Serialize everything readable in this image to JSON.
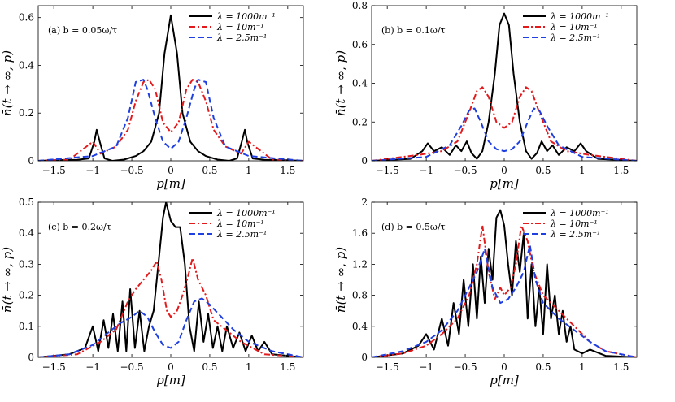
{
  "chart_data": [
    {
      "type": "line",
      "annotation": "(a) b = 0.05ω/τ",
      "xlabel": "p[m]",
      "ylabel": "n̄(t → ∞, p)",
      "xlim": [
        -1.7,
        1.7
      ],
      "ylim": [
        0,
        0.65
      ],
      "xticks": [
        -1.5,
        -1,
        -0.5,
        0,
        0.5,
        1,
        1.5
      ],
      "xtick_labels": [
        "−1.5",
        "−1",
        "−0.5",
        "0",
        "0.5",
        "1",
        "1.5"
      ],
      "yticks": [
        0,
        0.2,
        0.4,
        0.6
      ],
      "ytick_labels": [
        "0",
        "0.2",
        "0.4",
        "0.6"
      ],
      "legend_position": "top-right",
      "series": [
        {
          "name": "λ = 1000m⁻¹",
          "color": "#000000",
          "dash": "solid",
          "x": [
            -1.7,
            -1.45,
            -1.2,
            -1.05,
            -0.98,
            -0.95,
            -0.91,
            -0.85,
            -0.75,
            -0.6,
            -0.45,
            -0.35,
            -0.25,
            -0.15,
            -0.08,
            0,
            0.08,
            0.15,
            0.25,
            0.35,
            0.45,
            0.6,
            0.75,
            0.85,
            0.91,
            0.95,
            0.98,
            1.05,
            1.2,
            1.45,
            1.7
          ],
          "y": [
            0,
            0.003,
            0.004,
            0.01,
            0.08,
            0.13,
            0.08,
            0.01,
            0,
            0.005,
            0.02,
            0.04,
            0.08,
            0.2,
            0.45,
            0.61,
            0.45,
            0.2,
            0.08,
            0.04,
            0.02,
            0.005,
            0,
            0.01,
            0.08,
            0.13,
            0.08,
            0.01,
            0.004,
            0.003,
            0
          ]
        },
        {
          "name": "λ = 10m⁻¹",
          "color": "#e31a1c",
          "dash": "dashdot",
          "x": [
            -1.7,
            -1.3,
            -1.0,
            -0.9,
            -0.7,
            -0.55,
            -0.45,
            -0.35,
            -0.28,
            -0.2,
            -0.1,
            0,
            0.1,
            0.2,
            0.28,
            0.35,
            0.45,
            0.55,
            0.7,
            0.9,
            1.0,
            1.3,
            1.7
          ],
          "y": [
            0,
            0.005,
            0.08,
            0.03,
            0.06,
            0.13,
            0.25,
            0.33,
            0.34,
            0.3,
            0.16,
            0.12,
            0.16,
            0.3,
            0.34,
            0.33,
            0.25,
            0.13,
            0.06,
            0.03,
            0.08,
            0.005,
            0
          ]
        },
        {
          "name": "λ = 2.5m⁻¹",
          "color": "#1f3fe0",
          "dash": "dashed",
          "x": [
            -1.7,
            -1.0,
            -0.7,
            -0.55,
            -0.45,
            -0.35,
            -0.3,
            -0.2,
            -0.1,
            0,
            0.1,
            0.2,
            0.3,
            0.35,
            0.45,
            0.55,
            0.7,
            1.0,
            1.7
          ],
          "y": [
            0,
            0.02,
            0.06,
            0.18,
            0.33,
            0.34,
            0.3,
            0.18,
            0.08,
            0.05,
            0.08,
            0.18,
            0.3,
            0.34,
            0.33,
            0.18,
            0.06,
            0.02,
            0
          ]
        }
      ]
    },
    {
      "type": "line",
      "annotation": "(b) b = 0.1ω/τ",
      "xlabel": "p[m]",
      "ylabel": "n̄(t → ∞, p)",
      "xlim": [
        -1.7,
        1.7
      ],
      "ylim": [
        0,
        0.8
      ],
      "xticks": [
        -1.5,
        -1,
        -0.5,
        0,
        0.5,
        1,
        1.5
      ],
      "xtick_labels": [
        "−1.5",
        "−1",
        "−0.5",
        "0",
        "0.5",
        "1",
        "1.5"
      ],
      "yticks": [
        0,
        0.2,
        0.4,
        0.6,
        0.8
      ],
      "ytick_labels": [
        "0",
        "0.2",
        "0.4",
        "0.6",
        "0.8"
      ],
      "legend_position": "top-right",
      "series": [
        {
          "name": "λ = 1000m⁻¹",
          "color": "#000000",
          "dash": "solid",
          "x": [
            -1.7,
            -1.2,
            -1.05,
            -0.98,
            -0.9,
            -0.8,
            -0.7,
            -0.62,
            -0.55,
            -0.48,
            -0.42,
            -0.35,
            -0.28,
            -0.2,
            -0.12,
            -0.06,
            0,
            0.06,
            0.12,
            0.2,
            0.28,
            0.35,
            0.42,
            0.48,
            0.55,
            0.62,
            0.7,
            0.8,
            0.9,
            0.98,
            1.05,
            1.2,
            1.7
          ],
          "y": [
            0,
            0.01,
            0.05,
            0.09,
            0.05,
            0.07,
            0.03,
            0.08,
            0.05,
            0.1,
            0.04,
            0.01,
            0.05,
            0.2,
            0.45,
            0.7,
            0.76,
            0.7,
            0.45,
            0.2,
            0.05,
            0.01,
            0.04,
            0.1,
            0.05,
            0.08,
            0.03,
            0.07,
            0.05,
            0.09,
            0.05,
            0.01,
            0
          ]
        },
        {
          "name": "λ = 10m⁻¹",
          "color": "#e31a1c",
          "dash": "dashdot",
          "x": [
            -1.7,
            -1.1,
            -0.8,
            -0.6,
            -0.45,
            -0.35,
            -0.28,
            -0.2,
            -0.1,
            0,
            0.1,
            0.2,
            0.28,
            0.35,
            0.45,
            0.6,
            0.8,
            1.1,
            1.7
          ],
          "y": [
            0,
            0.03,
            0.05,
            0.1,
            0.25,
            0.36,
            0.38,
            0.33,
            0.2,
            0.17,
            0.2,
            0.33,
            0.38,
            0.36,
            0.25,
            0.1,
            0.05,
            0.03,
            0
          ]
        },
        {
          "name": "λ = 2.5m⁻¹",
          "color": "#1f3fe0",
          "dash": "dashed",
          "x": [
            -1.7,
            -1.0,
            -0.7,
            -0.55,
            -0.45,
            -0.38,
            -0.3,
            -0.2,
            -0.1,
            0,
            0.1,
            0.2,
            0.3,
            0.38,
            0.45,
            0.55,
            0.7,
            1.0,
            1.7
          ],
          "y": [
            0,
            0.02,
            0.08,
            0.18,
            0.26,
            0.27,
            0.2,
            0.1,
            0.06,
            0.05,
            0.06,
            0.1,
            0.2,
            0.27,
            0.26,
            0.18,
            0.08,
            0.02,
            0
          ]
        }
      ]
    },
    {
      "type": "line",
      "annotation": "(c) b = 0.2ω/τ",
      "xlabel": "p[m]",
      "ylabel": "n̄(t → ∞, p)",
      "xlim": [
        -1.7,
        1.7
      ],
      "ylim": [
        0,
        0.5
      ],
      "xticks": [
        -1.5,
        -1,
        -0.5,
        0,
        0.5,
        1,
        1.5
      ],
      "xtick_labels": [
        "−1.5",
        "−1",
        "−0.5",
        "0",
        "0.5",
        "1",
        "1.5"
      ],
      "yticks": [
        0,
        0.1,
        0.2,
        0.3,
        0.4,
        0.5
      ],
      "ytick_labels": [
        "0",
        "0.1",
        "0.2",
        "0.3",
        "0.4",
        "0.5"
      ],
      "legend_position": "top-right",
      "series": [
        {
          "name": "λ = 1000m⁻¹",
          "color": "#000000",
          "dash": "solid",
          "x": [
            -1.7,
            -1.3,
            -1.1,
            -1.0,
            -0.93,
            -0.86,
            -0.8,
            -0.74,
            -0.68,
            -0.62,
            -0.57,
            -0.52,
            -0.46,
            -0.4,
            -0.34,
            -0.28,
            -0.22,
            -0.16,
            -0.1,
            -0.06,
            0,
            0.06,
            0.12,
            0.18,
            0.24,
            0.3,
            0.36,
            0.42,
            0.48,
            0.54,
            0.6,
            0.66,
            0.72,
            0.8,
            0.88,
            0.96,
            1.04,
            1.12,
            1.2,
            1.3,
            1.7
          ],
          "y": [
            0,
            0.01,
            0.03,
            0.1,
            0.02,
            0.12,
            0.03,
            0.14,
            0.02,
            0.18,
            0.02,
            0.22,
            0.03,
            0.15,
            0.02,
            0.1,
            0.15,
            0.3,
            0.45,
            0.5,
            0.44,
            0.42,
            0.42,
            0.3,
            0.1,
            0.02,
            0.18,
            0.05,
            0.14,
            0.03,
            0.1,
            0.02,
            0.1,
            0.03,
            0.08,
            0.02,
            0.07,
            0.02,
            0.05,
            0.01,
            0
          ]
        },
        {
          "name": "λ = 10m⁻¹",
          "color": "#e31a1c",
          "dash": "dashdot",
          "x": [
            -1.7,
            -1.2,
            -0.9,
            -0.7,
            -0.55,
            -0.45,
            -0.35,
            -0.25,
            -0.18,
            -0.12,
            -0.05,
            0,
            0.08,
            0.15,
            0.22,
            0.28,
            0.35,
            0.45,
            0.55,
            0.7,
            0.9,
            1.2,
            1.7
          ],
          "y": [
            0,
            0.01,
            0.05,
            0.09,
            0.18,
            0.22,
            0.25,
            0.28,
            0.31,
            0.25,
            0.15,
            0.13,
            0.15,
            0.2,
            0.26,
            0.32,
            0.25,
            0.2,
            0.12,
            0.09,
            0.05,
            0.01,
            0
          ]
        },
        {
          "name": "λ = 2.5m⁻¹",
          "color": "#1f3fe0",
          "dash": "dashed",
          "x": [
            -1.7,
            -1.3,
            -1.0,
            -0.8,
            -0.65,
            -0.5,
            -0.4,
            -0.3,
            -0.2,
            -0.1,
            0,
            0.1,
            0.2,
            0.3,
            0.4,
            0.5,
            0.65,
            0.8,
            1.0,
            1.3,
            1.7
          ],
          "y": [
            0,
            0.01,
            0.04,
            0.08,
            0.11,
            0.13,
            0.15,
            0.13,
            0.08,
            0.04,
            0.03,
            0.05,
            0.12,
            0.18,
            0.19,
            0.17,
            0.13,
            0.09,
            0.05,
            0.02,
            0
          ]
        }
      ]
    },
    {
      "type": "line",
      "annotation": "(d) b = 0.5ω/τ",
      "xlabel": "p[m]",
      "ylabel": "n̄(t → ∞, p)",
      "xlim": [
        -1.7,
        1.7
      ],
      "ylim": [
        0,
        2
      ],
      "xticks": [
        -1.5,
        -1,
        -0.5,
        0,
        0.5,
        1,
        1.5
      ],
      "xtick_labels": [
        "−1.5",
        "−1",
        "−0.5",
        "0",
        "0.5",
        "1",
        "1.5"
      ],
      "yticks": [
        0,
        0.4,
        0.8,
        1.2,
        1.6,
        2
      ],
      "ytick_labels": [
        "0",
        "0.4",
        "0.8",
        "1.2",
        "1.6",
        "2"
      ],
      "legend_position": "top-right",
      "series": [
        {
          "name": "λ = 1000m⁻¹",
          "color": "#000000",
          "dash": "solid",
          "x": [
            -1.7,
            -1.3,
            -1.1,
            -1.0,
            -0.9,
            -0.8,
            -0.72,
            -0.65,
            -0.58,
            -0.52,
            -0.46,
            -0.4,
            -0.35,
            -0.3,
            -0.25,
            -0.2,
            -0.15,
            -0.1,
            -0.05,
            0,
            0.05,
            0.1,
            0.15,
            0.2,
            0.25,
            0.3,
            0.35,
            0.4,
            0.45,
            0.5,
            0.55,
            0.6,
            0.65,
            0.7,
            0.75,
            0.8,
            0.85,
            0.9,
            1.0,
            1.1,
            1.3,
            1.7
          ],
          "y": [
            0,
            0.05,
            0.15,
            0.3,
            0.1,
            0.5,
            0.15,
            0.7,
            0.3,
            1.0,
            0.4,
            1.2,
            0.5,
            1.3,
            0.7,
            1.4,
            1.0,
            1.8,
            1.9,
            1.7,
            1.2,
            0.8,
            1.5,
            1.1,
            1.6,
            0.5,
            1.2,
            0.4,
            0.9,
            0.3,
            1.2,
            0.5,
            0.8,
            0.3,
            0.6,
            0.2,
            0.4,
            0.1,
            0.05,
            0.1,
            0.02,
            0
          ]
        },
        {
          "name": "λ = 10m⁻¹",
          "color": "#e31a1c",
          "dash": "dashdot",
          "x": [
            -1.7,
            -1.3,
            -1.0,
            -0.8,
            -0.6,
            -0.45,
            -0.35,
            -0.28,
            -0.2,
            -0.12,
            -0.05,
            0,
            0.08,
            0.15,
            0.22,
            0.3,
            0.38,
            0.5,
            0.7,
            0.9,
            1.1,
            1.3,
            1.7
          ],
          "y": [
            0,
            0.05,
            0.15,
            0.3,
            0.5,
            0.8,
            1.2,
            1.7,
            1.1,
            0.75,
            0.9,
            0.8,
            0.9,
            1.2,
            1.7,
            1.5,
            1.1,
            0.8,
            0.6,
            0.4,
            0.2,
            0.08,
            0
          ]
        },
        {
          "name": "λ = 2.5m⁻¹",
          "color": "#1f3fe0",
          "dash": "dashed",
          "x": [
            -1.7,
            -1.3,
            -1.0,
            -0.8,
            -0.6,
            -0.45,
            -0.35,
            -0.25,
            -0.15,
            -0.05,
            0.05,
            0.15,
            0.25,
            0.33,
            0.4,
            0.5,
            0.7,
            0.9,
            1.1,
            1.3,
            1.7
          ],
          "y": [
            0,
            0.08,
            0.2,
            0.35,
            0.6,
            0.9,
            1.1,
            1.4,
            0.9,
            0.7,
            0.75,
            0.9,
            1.1,
            1.45,
            1.0,
            0.7,
            0.5,
            0.35,
            0.2,
            0.08,
            0
          ]
        }
      ]
    }
  ]
}
